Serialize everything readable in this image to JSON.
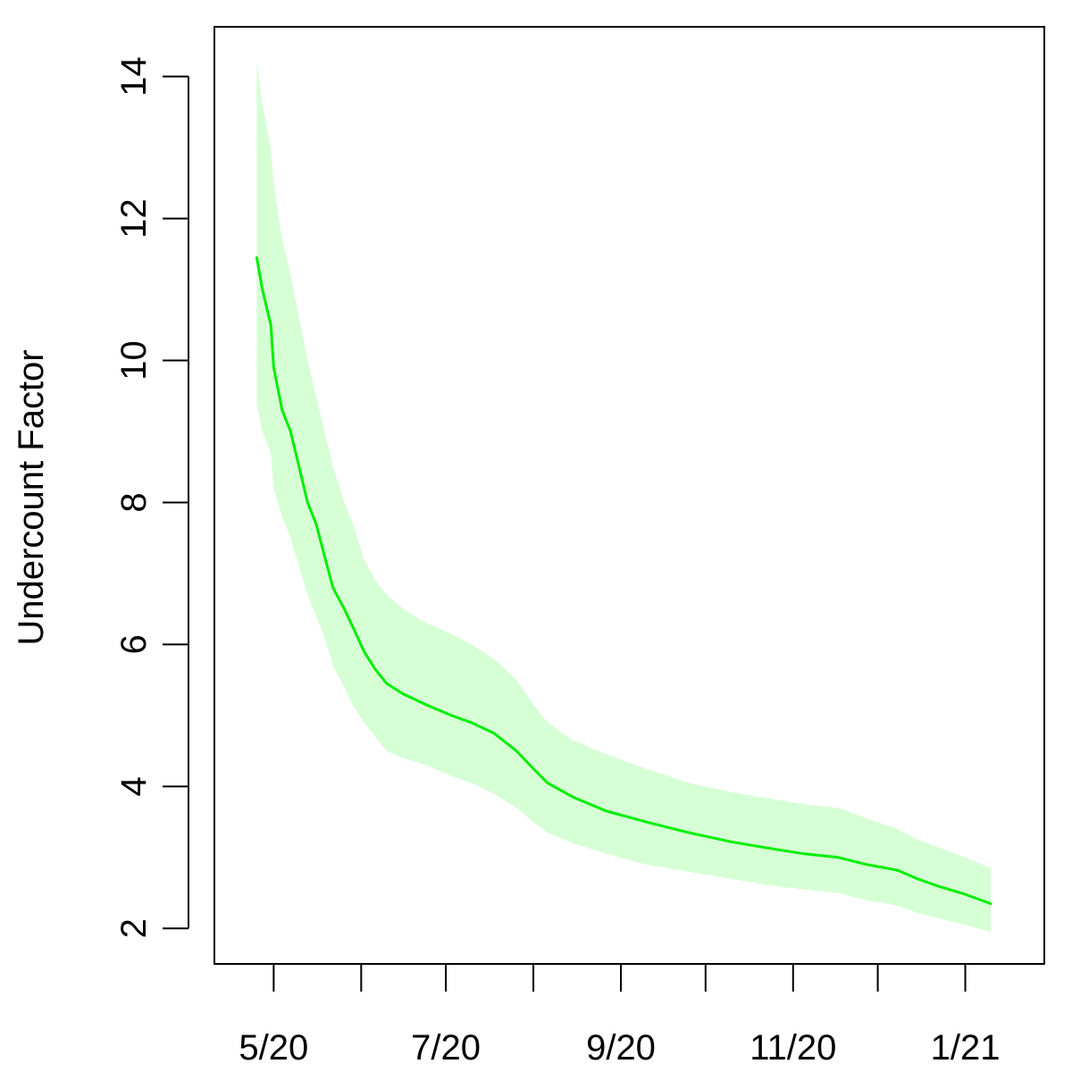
{
  "chart_data": {
    "type": "line",
    "ylabel": "Undercount Factor",
    "xlabel": "",
    "ylim": [
      1.5,
      14.7
    ],
    "xlim": [
      "2020-04-10",
      "2021-01-29"
    ],
    "x_ticks": [
      {
        "date": "2020-05-01",
        "label": "5/20",
        "labeled": true
      },
      {
        "date": "2020-06-01",
        "label": "",
        "labeled": false
      },
      {
        "date": "2020-07-01",
        "label": "7/20",
        "labeled": true
      },
      {
        "date": "2020-08-01",
        "label": "",
        "labeled": false
      },
      {
        "date": "2020-09-01",
        "label": "9/20",
        "labeled": true
      },
      {
        "date": "2020-10-01",
        "label": "",
        "labeled": false
      },
      {
        "date": "2020-11-01",
        "label": "11/20",
        "labeled": true
      },
      {
        "date": "2020-12-01",
        "label": "",
        "labeled": false
      },
      {
        "date": "2021-01-01",
        "label": "1/21",
        "labeled": true
      }
    ],
    "y_ticks": [
      2,
      4,
      6,
      8,
      10,
      12,
      14
    ],
    "series": [
      {
        "color": "#00ee00",
        "band_color": "#d6ffd6",
        "points": [
          {
            "x": "2020-04-25",
            "y": 11.45,
            "lo": 9.4,
            "hi": 14.2
          },
          {
            "x": "2020-04-27",
            "y": 11.0,
            "lo": 9.0,
            "hi": 13.6
          },
          {
            "x": "2020-04-30",
            "y": 10.5,
            "lo": 8.7,
            "hi": 13.0
          },
          {
            "x": "2020-05-01",
            "y": 9.9,
            "lo": 8.2,
            "hi": 12.5
          },
          {
            "x": "2020-05-04",
            "y": 9.3,
            "lo": 7.8,
            "hi": 11.7
          },
          {
            "x": "2020-05-07",
            "y": 9.0,
            "lo": 7.5,
            "hi": 11.2
          },
          {
            "x": "2020-05-10",
            "y": 8.5,
            "lo": 7.1,
            "hi": 10.6
          },
          {
            "x": "2020-05-13",
            "y": 8.0,
            "lo": 6.7,
            "hi": 10.0
          },
          {
            "x": "2020-05-16",
            "y": 7.7,
            "lo": 6.4,
            "hi": 9.5
          },
          {
            "x": "2020-05-19",
            "y": 7.25,
            "lo": 6.1,
            "hi": 9.0
          },
          {
            "x": "2020-05-22",
            "y": 6.8,
            "lo": 5.7,
            "hi": 8.5
          },
          {
            "x": "2020-05-26",
            "y": 6.5,
            "lo": 5.4,
            "hi": 8.0
          },
          {
            "x": "2020-05-29",
            "y": 6.25,
            "lo": 5.15,
            "hi": 7.7
          },
          {
            "x": "2020-06-02",
            "y": 5.9,
            "lo": 4.9,
            "hi": 7.2
          },
          {
            "x": "2020-06-06",
            "y": 5.65,
            "lo": 4.7,
            "hi": 6.9
          },
          {
            "x": "2020-06-10",
            "y": 5.45,
            "lo": 4.5,
            "hi": 6.7
          },
          {
            "x": "2020-06-16",
            "y": 5.3,
            "lo": 4.4,
            "hi": 6.5
          },
          {
            "x": "2020-06-24",
            "y": 5.15,
            "lo": 4.3,
            "hi": 6.3
          },
          {
            "x": "2020-07-03",
            "y": 5.0,
            "lo": 4.15,
            "hi": 6.15
          },
          {
            "x": "2020-07-10",
            "y": 4.9,
            "lo": 4.05,
            "hi": 6.0
          },
          {
            "x": "2020-07-18",
            "y": 4.75,
            "lo": 3.9,
            "hi": 5.8
          },
          {
            "x": "2020-07-26",
            "y": 4.5,
            "lo": 3.7,
            "hi": 5.5
          },
          {
            "x": "2020-08-01",
            "y": 4.25,
            "lo": 3.5,
            "hi": 5.15
          },
          {
            "x": "2020-08-06",
            "y": 4.05,
            "lo": 3.35,
            "hi": 4.9
          },
          {
            "x": "2020-08-15",
            "y": 3.85,
            "lo": 3.2,
            "hi": 4.65
          },
          {
            "x": "2020-08-27",
            "y": 3.65,
            "lo": 3.05,
            "hi": 4.45
          },
          {
            "x": "2020-09-10",
            "y": 3.5,
            "lo": 2.9,
            "hi": 4.25
          },
          {
            "x": "2020-09-25",
            "y": 3.35,
            "lo": 2.8,
            "hi": 4.05
          },
          {
            "x": "2020-10-10",
            "y": 3.22,
            "lo": 2.7,
            "hi": 3.92
          },
          {
            "x": "2020-10-25",
            "y": 3.12,
            "lo": 2.6,
            "hi": 3.82
          },
          {
            "x": "2020-11-05",
            "y": 3.05,
            "lo": 2.55,
            "hi": 3.75
          },
          {
            "x": "2020-11-17",
            "y": 3.0,
            "lo": 2.5,
            "hi": 3.7
          },
          {
            "x": "2020-11-27",
            "y": 2.9,
            "lo": 2.4,
            "hi": 3.55
          },
          {
            "x": "2020-12-08",
            "y": 2.82,
            "lo": 2.32,
            "hi": 3.4
          },
          {
            "x": "2020-12-15",
            "y": 2.7,
            "lo": 2.22,
            "hi": 3.25
          },
          {
            "x": "2020-12-22",
            "y": 2.6,
            "lo": 2.15,
            "hi": 3.15
          },
          {
            "x": "2021-01-01",
            "y": 2.48,
            "lo": 2.05,
            "hi": 3.0
          },
          {
            "x": "2021-01-10",
            "y": 2.35,
            "lo": 1.95,
            "hi": 2.85
          }
        ]
      }
    ],
    "grid": false,
    "legend": "none"
  }
}
